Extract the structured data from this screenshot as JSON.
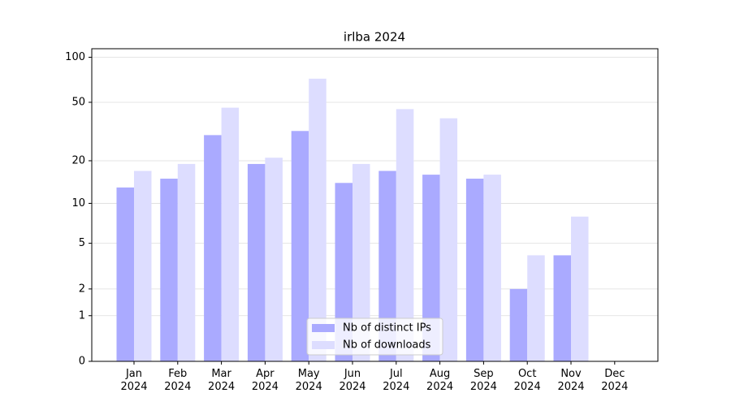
{
  "chart_data": {
    "type": "bar",
    "title": "irlba 2024",
    "categories": [
      "Jan\n2024",
      "Feb\n2024",
      "Mar\n2024",
      "Apr\n2024",
      "May\n2024",
      "Jun\n2024",
      "Jul\n2024",
      "Aug\n2024",
      "Sep\n2024",
      "Oct\n2024",
      "Nov\n2024",
      "Dec\n2024"
    ],
    "series": [
      {
        "name": "Nb of distinct IPs",
        "color": "#aaaaff",
        "values": [
          13,
          15,
          30,
          19,
          32,
          14,
          17,
          16,
          15,
          2,
          4,
          0
        ]
      },
      {
        "name": "Nb of downloads",
        "color": "#ddddff",
        "values": [
          17,
          19,
          46,
          21,
          72,
          19,
          45,
          39,
          16,
          4,
          8,
          0
        ]
      }
    ],
    "yscale": "log1p",
    "ylim": [
      0,
      114
    ],
    "yticks": [
      0,
      1,
      2,
      5,
      10,
      20,
      50,
      100
    ],
    "grid": true,
    "legend": "lower center"
  }
}
